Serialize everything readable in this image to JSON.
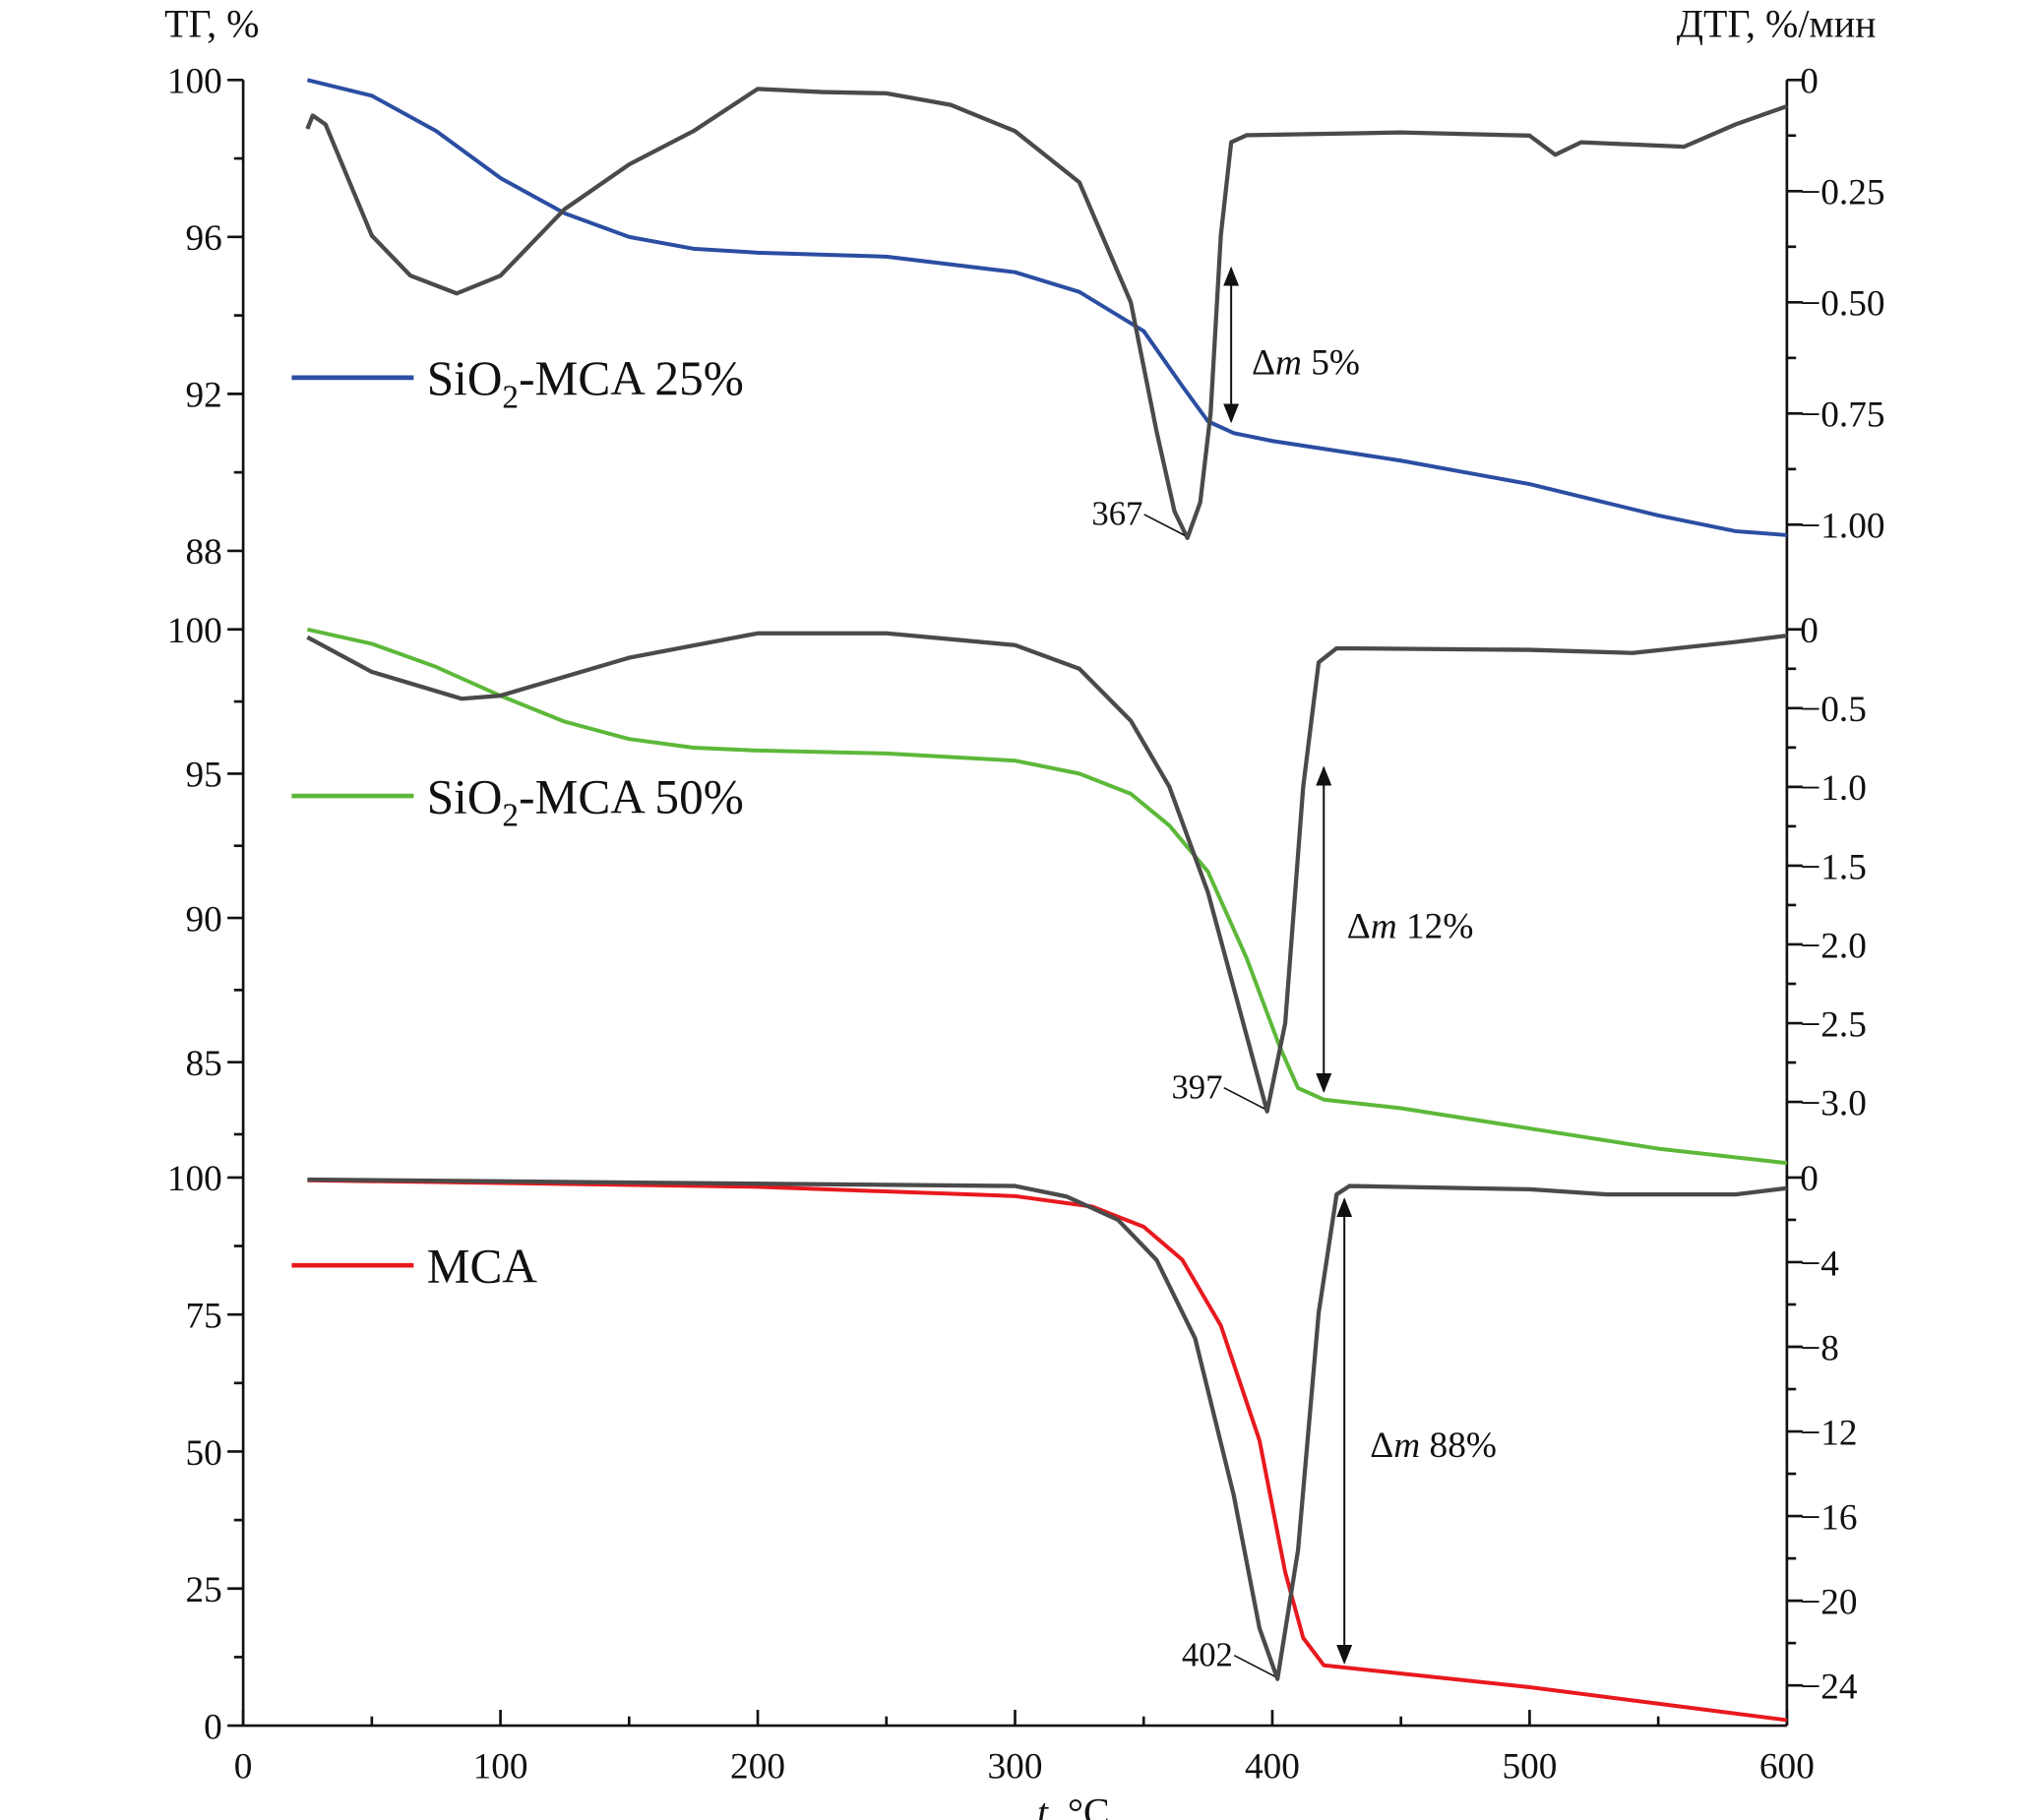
{
  "chart_data": {
    "type": "line",
    "xlabel_italic": "t",
    "xlabel_rest": ", °C",
    "ylabel_left": "ТГ, %",
    "ylabel_right": "ДТГ, %/мин",
    "xlim": [
      0,
      600
    ],
    "xticks": [
      0,
      100,
      200,
      300,
      400,
      500,
      600
    ],
    "xminor": [
      50,
      150,
      250,
      350,
      450,
      550
    ],
    "dtg_color": "#4a4a4a",
    "panels": [
      {
        "name": "SiO2-MCA 25%",
        "legend_parts": [
          "SiO",
          "2",
          "-MCA 25%"
        ],
        "color": "#2b4ea2",
        "tg_range": [
          87,
          100
        ],
        "tg_ticks": [
          88,
          92,
          96,
          100
        ],
        "tg_minor": [
          90,
          94,
          98
        ],
        "dtg_range": [
          -1.147,
          0
        ],
        "dtg_ticks": [
          0,
          -0.25,
          -0.5,
          -0.75,
          -1.0
        ],
        "dtg_tick_labels": [
          "0",
          "−0.25",
          "−0.50",
          "−0.75",
          "−1.00"
        ],
        "dtg_minor": [
          -0.125,
          -0.375,
          -0.625,
          -0.875
        ],
        "tg": [
          [
            25,
            100
          ],
          [
            50,
            99.6
          ],
          [
            75,
            98.7
          ],
          [
            100,
            97.5
          ],
          [
            125,
            96.6
          ],
          [
            150,
            96.0
          ],
          [
            175,
            95.7
          ],
          [
            200,
            95.6
          ],
          [
            250,
            95.5
          ],
          [
            300,
            95.1
          ],
          [
            325,
            94.6
          ],
          [
            350,
            93.6
          ],
          [
            365,
            92.2
          ],
          [
            375,
            91.3
          ],
          [
            385,
            91.0
          ],
          [
            400,
            90.8
          ],
          [
            450,
            90.3
          ],
          [
            500,
            89.7
          ],
          [
            550,
            88.9
          ],
          [
            580,
            88.5
          ],
          [
            600,
            88.4
          ]
        ],
        "dtg": [
          [
            25,
            -0.11
          ],
          [
            27,
            -0.08
          ],
          [
            32,
            -0.1
          ],
          [
            50,
            -0.35
          ],
          [
            65,
            -0.44
          ],
          [
            83,
            -0.48
          ],
          [
            100,
            -0.44
          ],
          [
            125,
            -0.29
          ],
          [
            150,
            -0.19
          ],
          [
            175,
            -0.115
          ],
          [
            200,
            -0.02
          ],
          [
            225,
            -0.027
          ],
          [
            250,
            -0.03
          ],
          [
            275,
            -0.056
          ],
          [
            300,
            -0.115
          ],
          [
            325,
            -0.23
          ],
          [
            345,
            -0.5
          ],
          [
            355,
            -0.79
          ],
          [
            362,
            -0.97
          ],
          [
            367,
            -1.03
          ],
          [
            372,
            -0.95
          ],
          [
            376,
            -0.75
          ],
          [
            380,
            -0.35
          ],
          [
            384,
            -0.14
          ],
          [
            390,
            -0.124
          ],
          [
            450,
            -0.118
          ],
          [
            500,
            -0.125
          ],
          [
            510,
            -0.168
          ],
          [
            520,
            -0.14
          ],
          [
            560,
            -0.15
          ],
          [
            580,
            -0.1
          ],
          [
            600,
            -0.059
          ]
        ],
        "peak_t": 367,
        "peak_dtg": -1.03,
        "peak_label": "367",
        "arrow": {
          "t": 384,
          "tg_from": 95.2,
          "tg_to": 91.3
        },
        "delta_prefix": "Δ",
        "delta_italic": "m",
        "delta_value": " 5%",
        "delta_at": {
          "t": 392,
          "tg": 92.5
        }
      },
      {
        "name": "SiO2-MCA 50%",
        "legend_parts": [
          "SiO",
          "2",
          "-MCA 50%"
        ],
        "color": "#5db83a",
        "tg_range": [
          81.82,
          100
        ],
        "tg_ticks": [
          85,
          90,
          95,
          100
        ],
        "tg_minor": [
          82.5,
          87.5,
          92.5,
          97.5
        ],
        "dtg_range": [
          -3.33,
          0
        ],
        "dtg_ticks": [
          0,
          -0.5,
          -1.0,
          -1.5,
          -2.0,
          -2.5,
          -3.0
        ],
        "dtg_tick_labels": [
          "0",
          "−0.5",
          "−1.0",
          "−1.5",
          "−2.0",
          "−2.5",
          "−3.0"
        ],
        "dtg_minor": [
          -0.25,
          -0.75,
          -1.25,
          -1.75,
          -2.25,
          -2.75
        ],
        "tg": [
          [
            25,
            100
          ],
          [
            50,
            99.5
          ],
          [
            75,
            98.7
          ],
          [
            100,
            97.7
          ],
          [
            125,
            96.8
          ],
          [
            150,
            96.2
          ],
          [
            175,
            95.9
          ],
          [
            200,
            95.8
          ],
          [
            250,
            95.7
          ],
          [
            300,
            95.45
          ],
          [
            325,
            95.0
          ],
          [
            345,
            94.3
          ],
          [
            360,
            93.2
          ],
          [
            375,
            91.6
          ],
          [
            390,
            88.6
          ],
          [
            403,
            85.5
          ],
          [
            410,
            84.1
          ],
          [
            420,
            83.7
          ],
          [
            450,
            83.4
          ],
          [
            500,
            82.7
          ],
          [
            550,
            82.0
          ],
          [
            600,
            81.5
          ]
        ],
        "dtg": [
          [
            25,
            -0.05
          ],
          [
            50,
            -0.27
          ],
          [
            85,
            -0.44
          ],
          [
            100,
            -0.42
          ],
          [
            150,
            -0.18
          ],
          [
            200,
            -0.025
          ],
          [
            250,
            -0.025
          ],
          [
            300,
            -0.1
          ],
          [
            325,
            -0.25
          ],
          [
            345,
            -0.58
          ],
          [
            360,
            -1.0
          ],
          [
            375,
            -1.67
          ],
          [
            390,
            -2.58
          ],
          [
            398,
            -3.06
          ],
          [
            405,
            -2.5
          ],
          [
            412,
            -1.0
          ],
          [
            418,
            -0.21
          ],
          [
            425,
            -0.12
          ],
          [
            500,
            -0.13
          ],
          [
            540,
            -0.15
          ],
          [
            580,
            -0.08
          ],
          [
            600,
            -0.04
          ]
        ],
        "peak_t": 398,
        "peak_dtg": -3.06,
        "peak_label": "397",
        "arrow": {
          "t": 420,
          "tg_from": 95.2,
          "tg_to": 84.0
        },
        "delta_prefix": "Δ",
        "delta_italic": "m",
        "delta_value": " 12%",
        "delta_at": {
          "t": 429,
          "tg": 89.3
        }
      },
      {
        "name": "MCA",
        "legend_parts": [
          "MCA",
          "",
          ""
        ],
        "color": "#e8191e",
        "tg_range": [
          0,
          100
        ],
        "tg_ticks": [
          0,
          25,
          50,
          75,
          100
        ],
        "tg_minor": [
          12.5,
          37.5,
          62.5,
          87.5
        ],
        "dtg_range": [
          -25.9,
          0
        ],
        "dtg_ticks": [
          0,
          -4,
          -8,
          -12,
          -16,
          -20,
          -24
        ],
        "dtg_tick_labels": [
          "0",
          "−4",
          "−8",
          "−12",
          "−16",
          "−20",
          "−24"
        ],
        "dtg_minor": [
          -2,
          -6,
          -10,
          -14,
          -18,
          -22
        ],
        "tg": [
          [
            25,
            99.5
          ],
          [
            100,
            99.0
          ],
          [
            200,
            98.3
          ],
          [
            300,
            96.6
          ],
          [
            330,
            94.7
          ],
          [
            350,
            91
          ],
          [
            365,
            85
          ],
          [
            380,
            73
          ],
          [
            395,
            52
          ],
          [
            405,
            28
          ],
          [
            412,
            16
          ],
          [
            420,
            11
          ],
          [
            450,
            9.5
          ],
          [
            500,
            7
          ],
          [
            550,
            4
          ],
          [
            600,
            1
          ]
        ],
        "dtg": [
          [
            25,
            -0.1
          ],
          [
            300,
            -0.4
          ],
          [
            320,
            -0.9
          ],
          [
            340,
            -2
          ],
          [
            355,
            -3.9
          ],
          [
            370,
            -7.6
          ],
          [
            385,
            -15
          ],
          [
            395,
            -21.3
          ],
          [
            402,
            -23.7
          ],
          [
            410,
            -17.6
          ],
          [
            418,
            -6.4
          ],
          [
            425,
            -0.8
          ],
          [
            430,
            -0.4
          ],
          [
            500,
            -0.56
          ],
          [
            530,
            -0.8
          ],
          [
            580,
            -0.8
          ],
          [
            600,
            -0.5
          ]
        ],
        "peak_t": 402,
        "peak_dtg": -23.7,
        "peak_label": "402",
        "arrow": {
          "t": 428,
          "tg_from": 96,
          "tg_to": 11.5
        },
        "delta_prefix": "Δ",
        "delta_italic": "m",
        "delta_value": " 88%",
        "delta_at": {
          "t": 438,
          "tg": 49
        }
      }
    ]
  }
}
